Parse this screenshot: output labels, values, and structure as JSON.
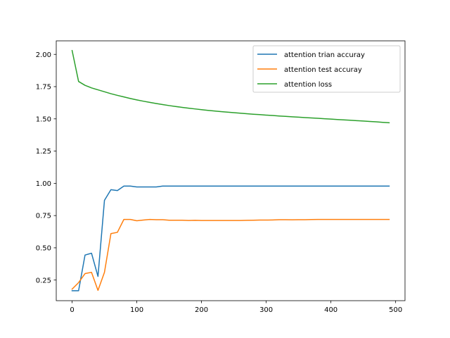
{
  "chart_data": {
    "type": "line",
    "title": "",
    "xlabel": "",
    "ylabel": "",
    "xlim": [
      -24.5,
      514.5
    ],
    "ylim": [
      0.09,
      2.105
    ],
    "x_ticks": [
      0,
      100,
      200,
      300,
      400,
      500
    ],
    "y_ticks": [
      0.25,
      0.5,
      0.75,
      1.0,
      1.25,
      1.5,
      1.75,
      2.0
    ],
    "x_tick_labels": [
      "0",
      "100",
      "200",
      "300",
      "400",
      "500"
    ],
    "y_tick_labels": [
      "0.25",
      "0.50",
      "0.75",
      "1.00",
      "1.25",
      "1.50",
      "1.75",
      "2.00"
    ],
    "grid": false,
    "legend_position": "top-right",
    "x": [
      0,
      10,
      20,
      30,
      40,
      50,
      60,
      70,
      80,
      90,
      100,
      110,
      120,
      130,
      140,
      150,
      160,
      170,
      180,
      190,
      200,
      210,
      220,
      230,
      240,
      250,
      260,
      270,
      280,
      290,
      300,
      310,
      320,
      330,
      340,
      350,
      360,
      370,
      380,
      390,
      400,
      410,
      420,
      430,
      440,
      450,
      460,
      470,
      480,
      490
    ],
    "series": [
      {
        "name": "attention trian accuray",
        "color": "#1f77b4",
        "values": [
          0.167,
          0.167,
          0.444,
          0.458,
          0.278,
          0.868,
          0.951,
          0.944,
          0.979,
          0.979,
          0.972,
          0.972,
          0.972,
          0.972,
          0.979,
          0.979,
          0.979,
          0.979,
          0.979,
          0.979,
          0.979,
          0.979,
          0.979,
          0.979,
          0.979,
          0.979,
          0.979,
          0.979,
          0.979,
          0.979,
          0.979,
          0.979,
          0.979,
          0.979,
          0.979,
          0.979,
          0.979,
          0.979,
          0.979,
          0.979,
          0.979,
          0.979,
          0.979,
          0.979,
          0.979,
          0.979,
          0.979,
          0.979,
          0.979,
          0.979
        ]
      },
      {
        "name": "attention test accuray",
        "color": "#ff7f0e",
        "values": [
          0.18,
          0.23,
          0.3,
          0.31,
          0.17,
          0.31,
          0.61,
          0.62,
          0.72,
          0.72,
          0.71,
          0.715,
          0.72,
          0.718,
          0.718,
          0.714,
          0.714,
          0.714,
          0.712,
          0.713,
          0.712,
          0.712,
          0.712,
          0.712,
          0.712,
          0.712,
          0.712,
          0.713,
          0.714,
          0.715,
          0.715,
          0.716,
          0.718,
          0.718,
          0.717,
          0.718,
          0.718,
          0.719,
          0.72,
          0.72,
          0.72,
          0.72,
          0.72,
          0.72,
          0.72,
          0.72,
          0.72,
          0.72,
          0.72,
          0.72
        ]
      },
      {
        "name": "attention loss",
        "color": "#2ca02c",
        "values": [
          2.03,
          1.79,
          1.76,
          1.74,
          1.725,
          1.71,
          1.695,
          1.682,
          1.67,
          1.658,
          1.647,
          1.637,
          1.628,
          1.619,
          1.611,
          1.603,
          1.596,
          1.589,
          1.583,
          1.577,
          1.571,
          1.566,
          1.561,
          1.556,
          1.552,
          1.548,
          1.544,
          1.54,
          1.536,
          1.533,
          1.529,
          1.526,
          1.522,
          1.519,
          1.516,
          1.513,
          1.51,
          1.507,
          1.504,
          1.501,
          1.498,
          1.495,
          1.492,
          1.489,
          1.486,
          1.483,
          1.48,
          1.477,
          1.473,
          1.47
        ]
      }
    ]
  }
}
